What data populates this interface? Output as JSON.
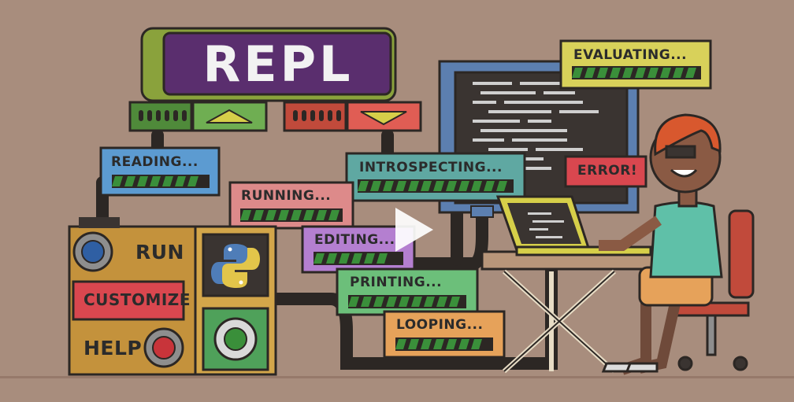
{
  "title": "REPL",
  "status_labels": {
    "evaluating": "EVALUATING...",
    "reading": "READING...",
    "introspecting": "INTROSPECTING...",
    "running": "RUNNING...",
    "editing": "EDITING...",
    "printing": "PRINTING...",
    "looping": "LOOPING...",
    "error": "ERROR!"
  },
  "control_panel": {
    "run": "RUN",
    "customize": "CUSTOMIZE",
    "help": "HELP"
  },
  "icons": {
    "logo": "python-logo-icon",
    "play": "play-icon",
    "dial": "dial-icon"
  },
  "colors": {
    "background": "#a88d7d",
    "repl_banner": "#5a2e6e",
    "progress_stripe": "#3a8f3a",
    "error_box": "#d9474f"
  }
}
